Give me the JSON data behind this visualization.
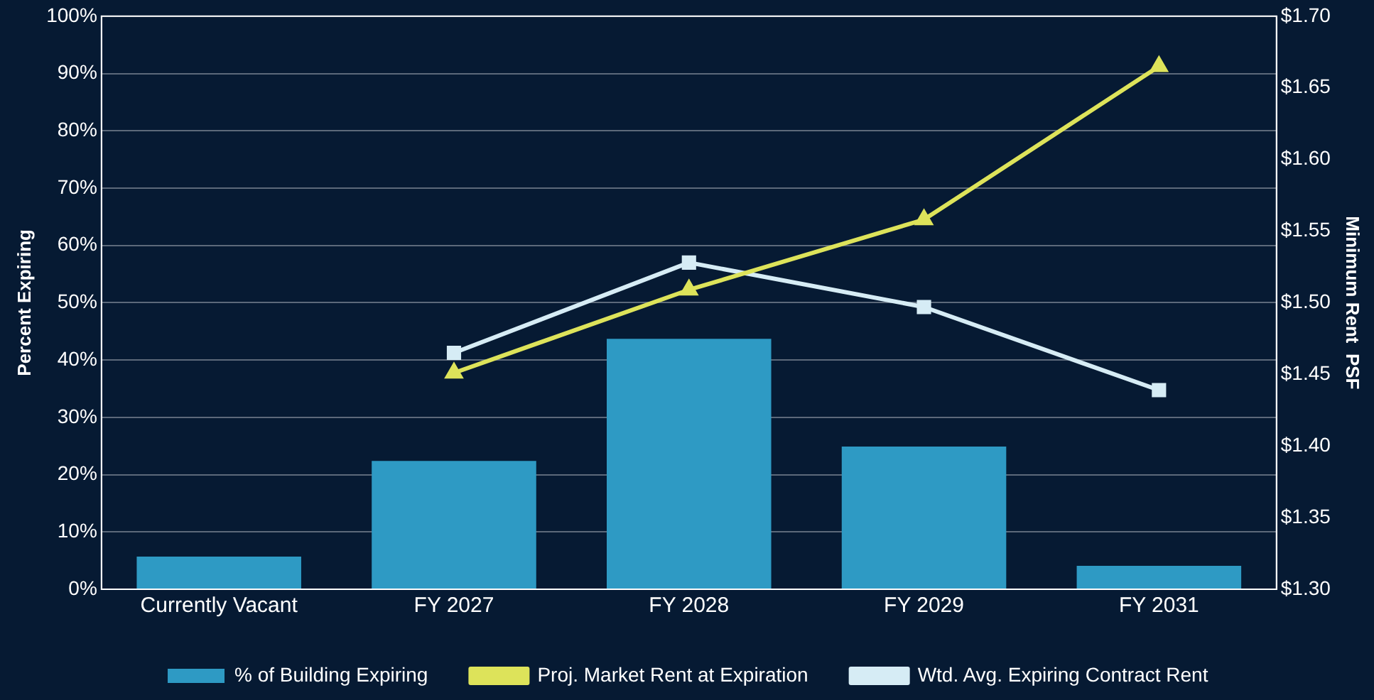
{
  "chart_data": {
    "type": "bar",
    "categories": [
      "Currently Vacant",
      "FY 2027",
      "FY 2028",
      "FY 2029",
      "FY 2031"
    ],
    "ylabel": "Percent Expiring",
    "y2label": "Minimum Rent  PSF",
    "series": [
      {
        "name": "% of Building Expiring",
        "color": "#2e9ac4",
        "values": [
          5.7,
          22.4,
          43.7,
          24.9,
          4.1
        ]
      },
      {
        "name": "Proj. Market Rent at Expiration",
        "type": "line",
        "axis": "y2",
        "marker": "triangle",
        "color": "#dde35a",
        "values": [
          null,
          1.451,
          1.509,
          1.558,
          1.665
        ]
      },
      {
        "name": "Wtd. Avg. Expiring Contract Rent",
        "type": "line",
        "axis": "y2",
        "marker": "square",
        "color": "#d6ecf5",
        "values": [
          null,
          1.465,
          1.528,
          1.497,
          1.439
        ]
      }
    ],
    "ylim": [
      0,
      100
    ],
    "yticks": [
      {
        "value": 0,
        "label": "0%"
      },
      {
        "value": 10,
        "label": "10%"
      },
      {
        "value": 20,
        "label": "20%"
      },
      {
        "value": 30,
        "label": "30%"
      },
      {
        "value": 40,
        "label": "40%"
      },
      {
        "value": 50,
        "label": "50%"
      },
      {
        "value": 60,
        "label": "60%"
      },
      {
        "value": 70,
        "label": "70%"
      },
      {
        "value": 80,
        "label": "80%"
      },
      {
        "value": 90,
        "label": "90%"
      },
      {
        "value": 100,
        "label": "100%"
      }
    ],
    "y2lim": [
      1.3,
      1.7
    ],
    "y2ticks": [
      {
        "value": 1.3,
        "label": "$1.30"
      },
      {
        "value": 1.35,
        "label": "$1.35"
      },
      {
        "value": 1.4,
        "label": "$1.40"
      },
      {
        "value": 1.45,
        "label": "$1.45"
      },
      {
        "value": 1.5,
        "label": "$1.50"
      },
      {
        "value": 1.55,
        "label": "$1.55"
      },
      {
        "value": 1.6,
        "label": "$1.60"
      },
      {
        "value": 1.65,
        "label": "$1.65"
      },
      {
        "value": 1.7,
        "label": "$1.70"
      }
    ],
    "grid": "y",
    "legend": "bottom"
  }
}
